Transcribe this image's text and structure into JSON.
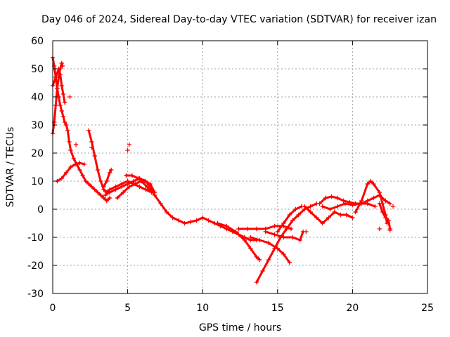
{
  "chart_data": {
    "type": "scatter",
    "title": "Day 046 of 2024, Sidereal Day-to-day VTEC variation (SDTVAR) for receiver izan",
    "xlabel": "GPS time / hours",
    "ylabel": "SDTVAR / TECUs",
    "xlim": [
      0,
      25
    ],
    "ylim": [
      -30,
      60
    ],
    "xticks": [
      0,
      5,
      10,
      15,
      20,
      25
    ],
    "yticks": [
      -30,
      -20,
      -10,
      0,
      10,
      20,
      30,
      40,
      50,
      60
    ],
    "xtick_labels": [
      "0",
      "5",
      "10",
      "15",
      "20",
      "25"
    ],
    "ytick_labels": [
      "-30",
      "-20",
      "-10",
      "0",
      "10",
      "20",
      "30",
      "40",
      "50",
      "60"
    ],
    "grid": true,
    "marker": "+",
    "color": "#ff0000",
    "series": [
      {
        "name": "track-1",
        "points": [
          [
            0.0,
            54
          ],
          [
            0.1,
            51
          ],
          [
            0.2,
            47
          ],
          [
            0.3,
            43
          ],
          [
            0.4,
            40
          ],
          [
            0.5,
            37
          ],
          [
            0.6,
            35
          ],
          [
            0.7,
            33
          ],
          [
            0.8,
            31
          ],
          [
            0.9,
            30
          ],
          [
            1.0,
            28
          ],
          [
            1.1,
            24
          ],
          [
            1.2,
            21
          ],
          [
            1.4,
            18
          ],
          [
            1.6,
            16
          ],
          [
            1.8,
            14
          ],
          [
            2.0,
            12
          ],
          [
            2.2,
            10
          ],
          [
            2.4,
            9
          ],
          [
            2.6,
            8
          ],
          [
            2.8,
            7
          ],
          [
            3.0,
            6
          ],
          [
            3.2,
            5
          ],
          [
            3.4,
            4
          ],
          [
            3.6,
            3
          ],
          [
            3.8,
            4
          ]
        ]
      },
      {
        "name": "track-2",
        "points": [
          [
            0.0,
            27
          ],
          [
            0.1,
            31
          ],
          [
            0.2,
            37
          ],
          [
            0.3,
            43
          ],
          [
            0.4,
            47
          ],
          [
            0.5,
            50
          ],
          [
            0.6,
            52
          ],
          [
            0.65,
            51
          ]
        ]
      },
      {
        "name": "track-3",
        "points": [
          [
            0.0,
            44
          ],
          [
            0.2,
            47
          ],
          [
            0.4,
            50
          ],
          [
            0.5,
            48
          ],
          [
            0.6,
            44
          ],
          [
            0.7,
            41
          ],
          [
            0.8,
            38
          ]
        ]
      },
      {
        "name": "track-4",
        "points": [
          [
            0.3,
            10
          ],
          [
            0.6,
            11
          ],
          [
            0.9,
            13
          ],
          [
            1.2,
            15
          ],
          [
            1.5,
            16
          ],
          [
            1.8,
            16.5
          ],
          [
            2.1,
            16
          ]
        ]
      },
      {
        "name": "track-5",
        "points": [
          [
            2.4,
            28
          ],
          [
            2.6,
            24
          ],
          [
            2.8,
            19
          ],
          [
            3.0,
            14
          ],
          [
            3.2,
            10
          ],
          [
            3.4,
            7
          ],
          [
            3.6,
            6
          ],
          [
            3.8,
            7
          ],
          [
            4.2,
            8
          ],
          [
            4.6,
            9
          ],
          [
            5.0,
            10
          ],
          [
            5.4,
            9
          ],
          [
            5.8,
            8
          ],
          [
            6.2,
            7
          ],
          [
            6.6,
            6
          ]
        ]
      },
      {
        "name": "track-6",
        "points": [
          [
            3.4,
            8
          ],
          [
            3.6,
            10
          ],
          [
            3.8,
            13
          ],
          [
            3.9,
            14
          ]
        ]
      },
      {
        "name": "track-7",
        "points": [
          [
            3.5,
            5
          ],
          [
            3.8,
            6
          ],
          [
            4.2,
            7
          ],
          [
            4.6,
            8
          ],
          [
            5.0,
            9
          ],
          [
            5.4,
            10
          ],
          [
            5.8,
            11
          ],
          [
            6.2,
            10
          ],
          [
            6.5,
            8
          ],
          [
            6.8,
            5
          ],
          [
            7.2,
            2
          ],
          [
            7.6,
            -1
          ],
          [
            8.0,
            -3
          ],
          [
            8.4,
            -4
          ],
          [
            8.8,
            -5
          ],
          [
            9.2,
            -4.5
          ],
          [
            9.6,
            -4
          ],
          [
            10.0,
            -3
          ],
          [
            10.4,
            -4
          ],
          [
            10.8,
            -5
          ],
          [
            11.2,
            -6
          ],
          [
            11.6,
            -7
          ],
          [
            12.0,
            -8
          ],
          [
            12.4,
            -9
          ],
          [
            12.8,
            -10
          ],
          [
            13.2,
            -11
          ],
          [
            13.6,
            -11
          ]
        ]
      },
      {
        "name": "track-8",
        "points": [
          [
            4.3,
            4
          ],
          [
            4.7,
            6
          ],
          [
            5.1,
            8
          ],
          [
            5.5,
            9
          ],
          [
            5.9,
            10
          ],
          [
            6.3,
            8
          ],
          [
            6.6,
            6
          ]
        ]
      },
      {
        "name": "track-9",
        "points": [
          [
            4.9,
            12
          ],
          [
            5.3,
            12
          ],
          [
            5.7,
            11
          ],
          [
            6.1,
            10
          ],
          [
            6.5,
            9
          ],
          [
            6.8,
            6
          ]
        ]
      },
      {
        "name": "track-10",
        "points": [
          [
            11.0,
            -5
          ],
          [
            11.6,
            -6
          ],
          [
            12.2,
            -8
          ],
          [
            12.8,
            -11
          ],
          [
            13.2,
            -14
          ],
          [
            13.6,
            -17
          ],
          [
            13.8,
            -18
          ]
        ]
      },
      {
        "name": "track-11",
        "points": [
          [
            12.4,
            -7
          ],
          [
            13.0,
            -7
          ],
          [
            13.6,
            -7
          ],
          [
            14.2,
            -7
          ],
          [
            14.8,
            -6
          ],
          [
            15.4,
            -6
          ],
          [
            15.9,
            -7
          ]
        ]
      },
      {
        "name": "track-12",
        "points": [
          [
            13.2,
            -10
          ],
          [
            13.8,
            -11
          ],
          [
            14.4,
            -12
          ],
          [
            15.0,
            -14
          ],
          [
            15.4,
            -16
          ],
          [
            15.8,
            -19
          ]
        ]
      },
      {
        "name": "track-13",
        "points": [
          [
            13.6,
            -26
          ],
          [
            14.0,
            -22
          ],
          [
            14.4,
            -18
          ],
          [
            14.8,
            -14
          ],
          [
            15.2,
            -10
          ],
          [
            15.6,
            -7
          ],
          [
            16.0,
            -4
          ],
          [
            16.4,
            -2
          ],
          [
            16.8,
            0
          ],
          [
            17.2,
            1
          ],
          [
            17.6,
            2
          ]
        ]
      },
      {
        "name": "track-14",
        "points": [
          [
            14.2,
            -8
          ],
          [
            14.8,
            -9
          ],
          [
            15.4,
            -10
          ],
          [
            16.0,
            -10
          ],
          [
            16.5,
            -11
          ],
          [
            16.7,
            -8
          ]
        ]
      },
      {
        "name": "track-15",
        "points": [
          [
            15.0,
            -8
          ],
          [
            15.4,
            -5
          ],
          [
            15.8,
            -2
          ],
          [
            16.2,
            0
          ],
          [
            16.6,
            1
          ]
        ]
      },
      {
        "name": "track-16",
        "points": [
          [
            16.8,
            1
          ],
          [
            17.2,
            -1
          ],
          [
            17.6,
            -3
          ],
          [
            18.0,
            -5
          ],
          [
            18.4,
            -3
          ],
          [
            18.8,
            -1
          ],
          [
            19.2,
            -2
          ],
          [
            19.6,
            -2
          ],
          [
            20.0,
            -3
          ]
        ]
      },
      {
        "name": "track-17",
        "points": [
          [
            17.8,
            2
          ],
          [
            18.2,
            4
          ],
          [
            18.6,
            4.5
          ],
          [
            19.0,
            4
          ],
          [
            19.4,
            3
          ],
          [
            19.8,
            2.5
          ],
          [
            20.2,
            2
          ],
          [
            20.6,
            2
          ],
          [
            21.0,
            3
          ],
          [
            21.4,
            4
          ],
          [
            21.8,
            5
          ],
          [
            22.2,
            3
          ],
          [
            22.5,
            2
          ]
        ]
      },
      {
        "name": "track-18",
        "points": [
          [
            18.0,
            1
          ],
          [
            18.5,
            0
          ],
          [
            19.0,
            1
          ],
          [
            19.5,
            2
          ],
          [
            20.0,
            1.5
          ],
          [
            20.5,
            2
          ],
          [
            21.0,
            2
          ],
          [
            21.5,
            1
          ]
        ]
      },
      {
        "name": "track-19",
        "points": [
          [
            20.2,
            -1
          ],
          [
            20.6,
            3
          ],
          [
            21.0,
            9
          ],
          [
            21.2,
            10
          ],
          [
            21.4,
            9
          ],
          [
            21.8,
            6
          ],
          [
            22.0,
            2
          ],
          [
            22.2,
            -2
          ],
          [
            22.3,
            -5
          ]
        ]
      },
      {
        "name": "track-20",
        "points": [
          [
            21.8,
            2
          ],
          [
            22.0,
            -1
          ],
          [
            22.2,
            -3
          ],
          [
            22.4,
            -4
          ],
          [
            22.5,
            -7
          ]
        ]
      }
    ],
    "isolated_points": [
      [
        1.15,
        40
      ],
      [
        1.55,
        23
      ],
      [
        5.0,
        21
      ],
      [
        5.1,
        23
      ],
      [
        2.6,
        22
      ],
      [
        22.7,
        1
      ],
      [
        22.5,
        -7.5
      ],
      [
        21.8,
        -7
      ],
      [
        16.9,
        -8
      ]
    ]
  }
}
